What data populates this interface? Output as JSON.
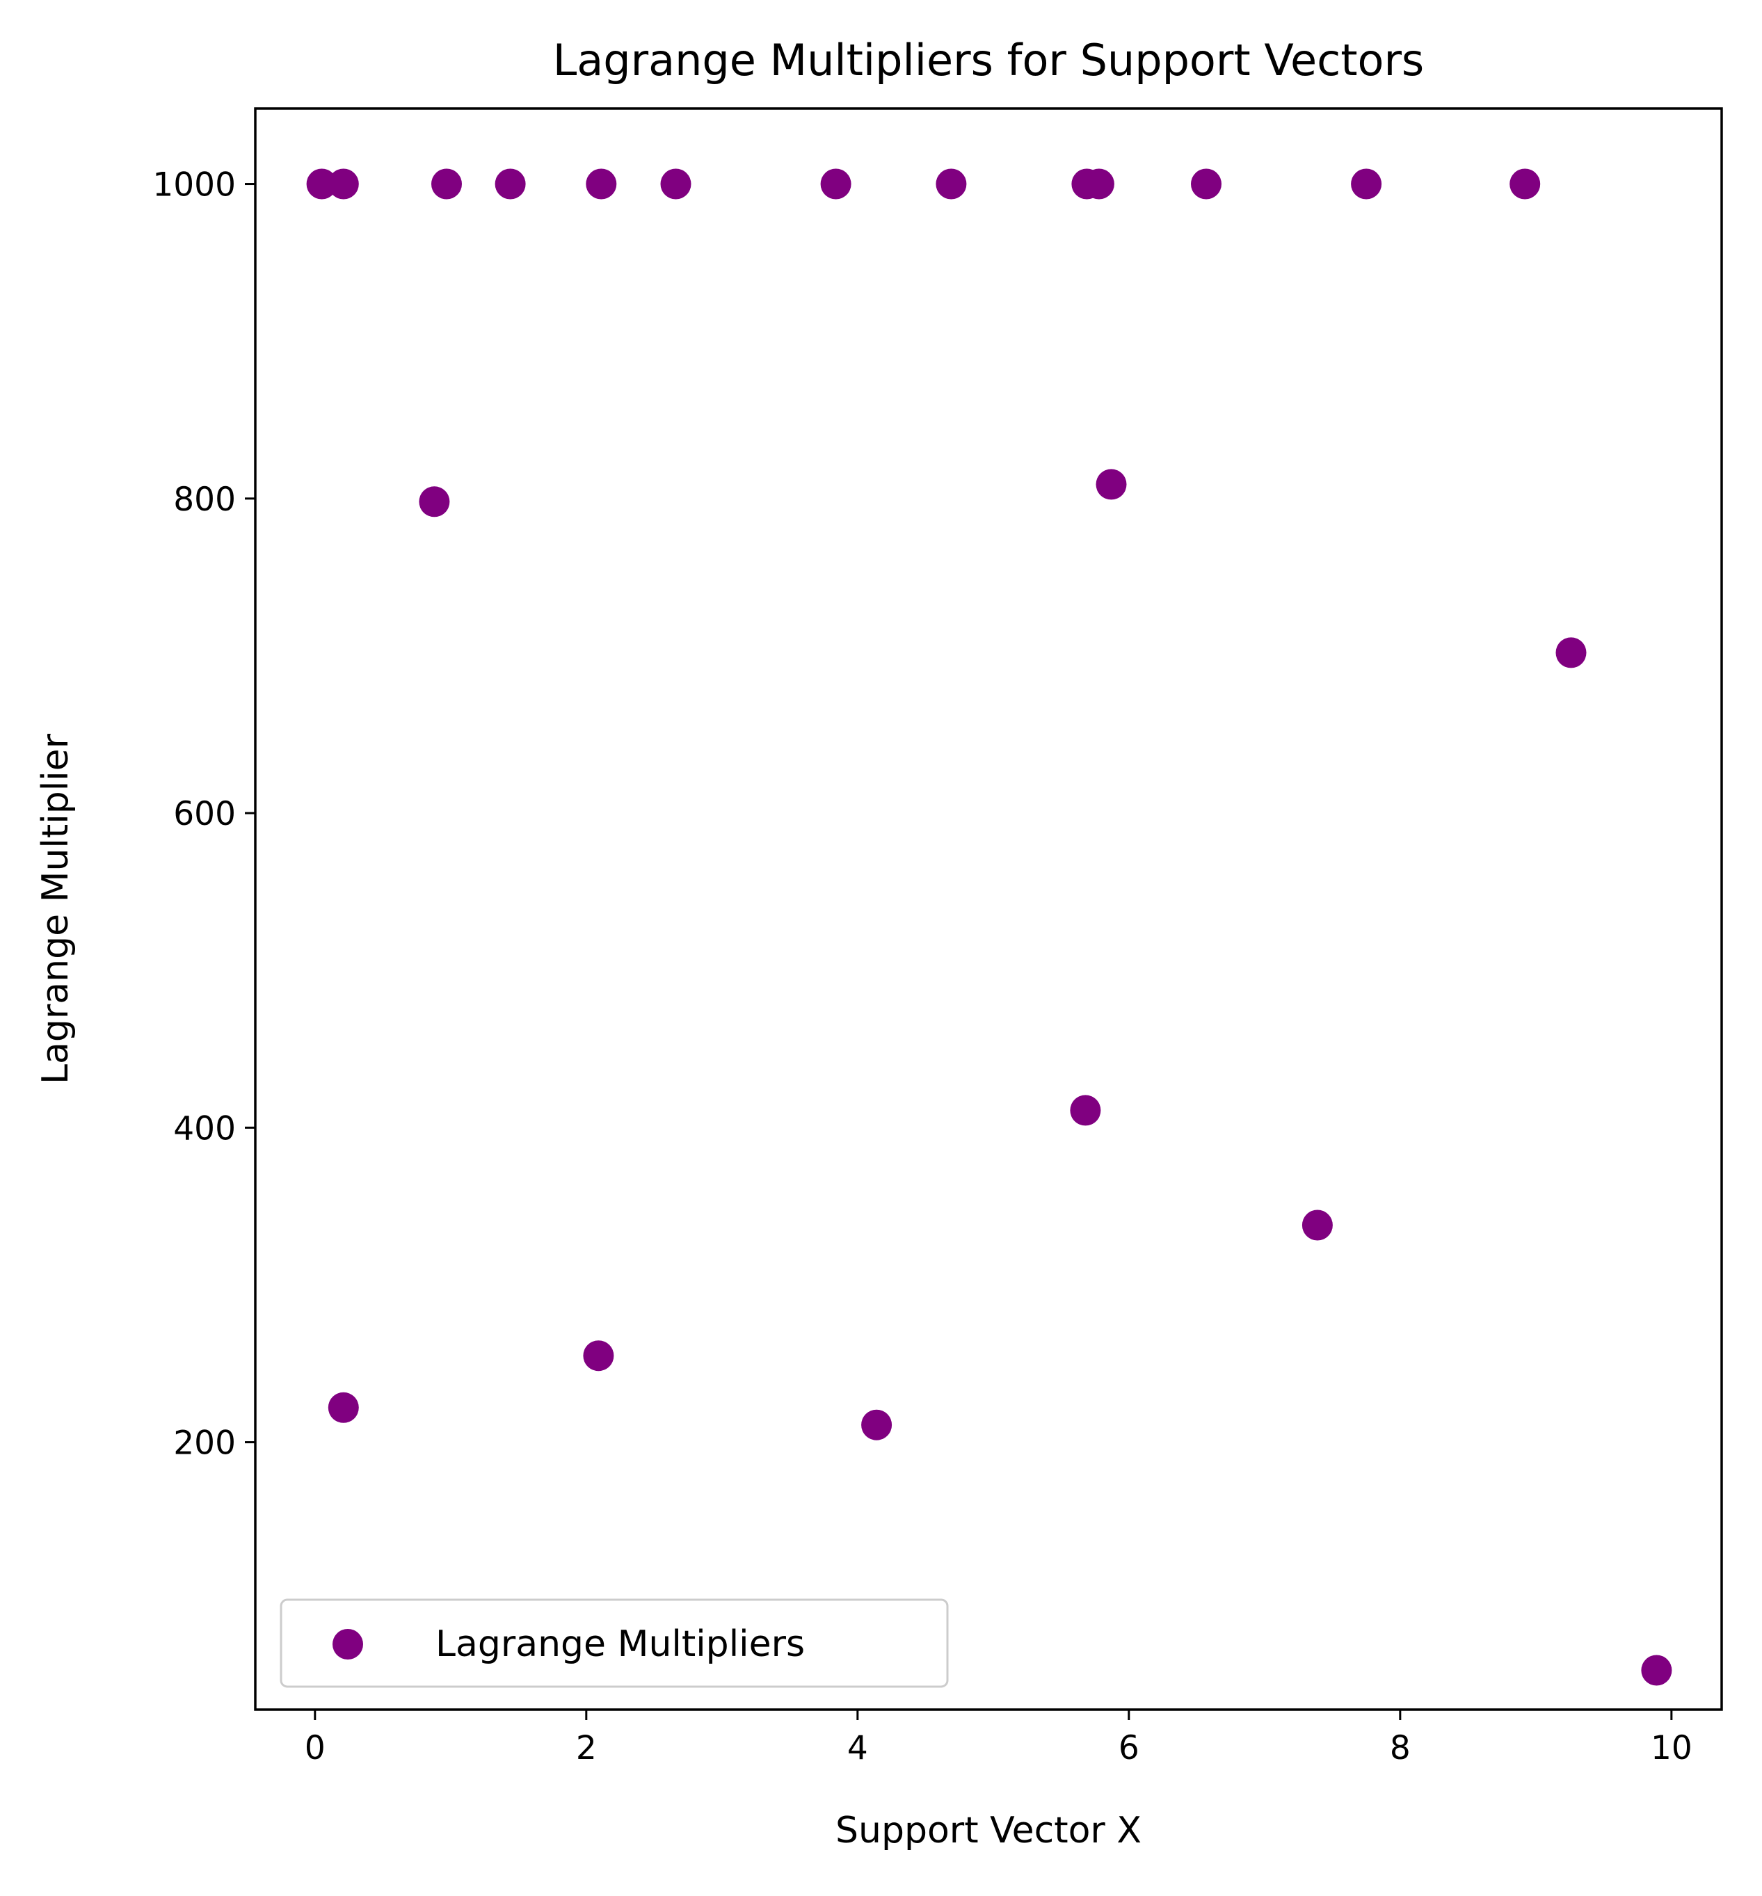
{
  "chart_data": {
    "type": "scatter",
    "title": "Lagrange Multipliers for Support Vectors",
    "xlabel": "Support Vector X",
    "ylabel": "Lagrange Multiplier",
    "xlim": [
      -0.44,
      10.37
    ],
    "ylim": [
      30,
      1048
    ],
    "xticks": [
      0,
      2,
      4,
      6,
      8,
      10
    ],
    "yticks": [
      200,
      400,
      600,
      800,
      1000
    ],
    "grid": false,
    "legend": {
      "position": "lower-left",
      "entries": [
        "Lagrange Multipliers"
      ]
    },
    "series": [
      {
        "name": "Lagrange Multipliers",
        "color": "#800080",
        "marker": "circle",
        "x": [
          0.05,
          0.21,
          0.97,
          1.44,
          2.11,
          2.66,
          3.84,
          4.69,
          5.69,
          5.78,
          6.57,
          7.75,
          8.92,
          0.88,
          5.87,
          9.26,
          5.68,
          7.39,
          2.09,
          0.21,
          4.14,
          9.89
        ],
        "y": [
          1000,
          1000,
          1000,
          1000,
          1000,
          1000,
          1000,
          1000,
          1000,
          1000,
          1000,
          1000,
          1000,
          798,
          809,
          702,
          411,
          338,
          255,
          222,
          211,
          55
        ]
      }
    ]
  }
}
